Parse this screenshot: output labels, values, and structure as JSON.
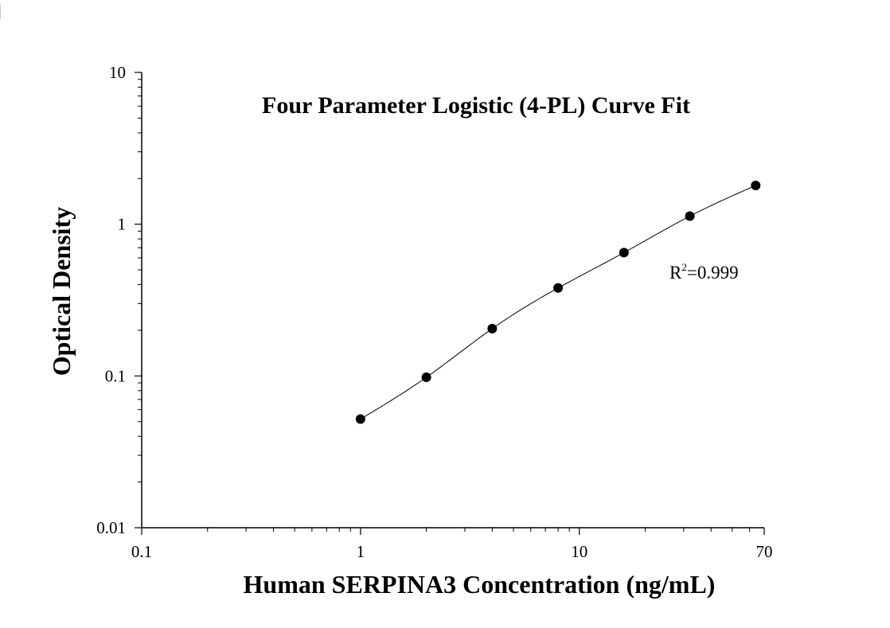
{
  "chart_data": {
    "type": "scatter",
    "title": "Four Parameter Logistic (4-PL) Curve Fit",
    "xlabel": "Human SERPINA3 Concentration (ng/mL)",
    "ylabel": "Optical Density",
    "xscale": "log",
    "yscale": "log",
    "xlim": [
      0.1,
      70
    ],
    "ylim": [
      0.01,
      10
    ],
    "x_ticks": [
      "0.1",
      "1",
      "10",
      "70"
    ],
    "y_ticks": [
      "0.01",
      "0.1",
      "1",
      "10"
    ],
    "grid": false,
    "series": [
      {
        "x": [
          1,
          2,
          4,
          8,
          16,
          32,
          64
        ],
        "y": [
          0.052,
          0.098,
          0.205,
          0.38,
          0.65,
          1.13,
          1.8
        ]
      }
    ],
    "fit": "4-PL",
    "annotation": {
      "r_base": "R",
      "r_sup": "2",
      "r_value": "=0.999"
    }
  }
}
